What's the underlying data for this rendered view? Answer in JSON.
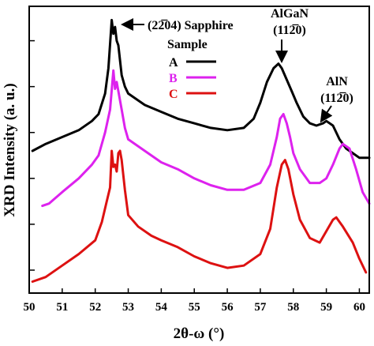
{
  "chart_data": {
    "type": "line",
    "title": "",
    "xlabel": "2θ-ω (°)",
    "ylabel": "XRD Intensity (a. u.)",
    "xlim": [
      50,
      60.3
    ],
    "ylim": [
      0,
      12.5
    ],
    "x_ticks": [
      "50",
      "51",
      "52",
      "53",
      "54",
      "55",
      "56",
      "57",
      "58",
      "59",
      "60"
    ],
    "y_ticks_shown_as_marks_only": true,
    "grid": false,
    "legend": {
      "title": "Sample",
      "position": "top-center",
      "entries": [
        {
          "label": "A",
          "color": "#000000"
        },
        {
          "label": "B",
          "color": "#dd22ee"
        },
        {
          "label": "C",
          "color": "#dd1111"
        }
      ]
    },
    "annotations": [
      {
        "text": "(22̅04) Sapphire",
        "points_to_x": 52.7
      },
      {
        "text_lines": [
          "AlGaN",
          "(112̅0)"
        ],
        "points_to_x": 57.6
      },
      {
        "text_lines": [
          "AlN",
          "(112̅0)"
        ],
        "points_to_x": 59.0
      }
    ],
    "series": [
      {
        "name": "A",
        "color": "#000000",
        "x": [
          50.1,
          50.5,
          51.0,
          51.5,
          51.9,
          52.1,
          52.3,
          52.4,
          52.5,
          52.55,
          52.6,
          52.65,
          52.7,
          52.8,
          52.9,
          53.0,
          53.5,
          54.0,
          54.5,
          55.0,
          55.5,
          56.0,
          56.5,
          56.8,
          57.0,
          57.2,
          57.4,
          57.55,
          57.65,
          57.8,
          57.95,
          58.1,
          58.3,
          58.5,
          58.7,
          58.9,
          59.0,
          59.2,
          59.4,
          59.6,
          59.8,
          60.0,
          60.3
        ],
        "y": [
          6.2,
          6.5,
          6.8,
          7.1,
          7.5,
          7.8,
          8.7,
          9.8,
          11.9,
          11.3,
          11.6,
          11.0,
          10.8,
          9.5,
          9.0,
          8.7,
          8.2,
          7.9,
          7.6,
          7.4,
          7.2,
          7.1,
          7.2,
          7.6,
          8.3,
          9.2,
          9.8,
          10.0,
          9.8,
          9.3,
          8.8,
          8.3,
          7.7,
          7.4,
          7.3,
          7.4,
          7.5,
          7.3,
          6.7,
          6.3,
          6.1,
          5.9,
          5.9
        ]
      },
      {
        "name": "B",
        "color": "#dd22ee",
        "x": [
          50.4,
          50.6,
          51.0,
          51.5,
          51.9,
          52.1,
          52.3,
          52.45,
          52.55,
          52.6,
          52.65,
          52.7,
          52.8,
          52.9,
          53.0,
          53.5,
          54.0,
          54.5,
          55.0,
          55.5,
          56.0,
          56.5,
          57.0,
          57.3,
          57.5,
          57.6,
          57.7,
          57.8,
          57.9,
          58.0,
          58.2,
          58.5,
          58.8,
          59.0,
          59.2,
          59.4,
          59.5,
          59.7,
          59.9,
          60.1,
          60.3
        ],
        "y": [
          3.8,
          3.9,
          4.4,
          5.0,
          5.6,
          6.0,
          7.0,
          8.0,
          9.7,
          8.9,
          9.2,
          8.8,
          8.0,
          7.2,
          6.7,
          6.2,
          5.7,
          5.4,
          5.0,
          4.7,
          4.5,
          4.5,
          4.8,
          5.6,
          6.8,
          7.6,
          7.8,
          7.4,
          6.8,
          6.1,
          5.4,
          4.8,
          4.8,
          5.0,
          5.6,
          6.3,
          6.5,
          6.3,
          5.4,
          4.4,
          3.9
        ]
      },
      {
        "name": "C",
        "color": "#dd1111",
        "x": [
          50.1,
          50.5,
          51.0,
          51.5,
          52.0,
          52.2,
          52.35,
          52.45,
          52.5,
          52.55,
          52.6,
          52.65,
          52.7,
          52.75,
          52.8,
          52.9,
          53.0,
          53.3,
          53.7,
          54.0,
          54.5,
          55.0,
          55.5,
          56.0,
          56.5,
          57.0,
          57.3,
          57.5,
          57.65,
          57.75,
          57.85,
          58.0,
          58.2,
          58.5,
          58.8,
          59.0,
          59.2,
          59.3,
          59.5,
          59.8,
          60.0,
          60.2
        ],
        "y": [
          0.5,
          0.7,
          1.2,
          1.7,
          2.3,
          3.1,
          4.0,
          4.6,
          6.2,
          5.5,
          5.6,
          5.3,
          6.1,
          6.2,
          5.8,
          4.5,
          3.4,
          2.9,
          2.5,
          2.3,
          2.0,
          1.6,
          1.3,
          1.1,
          1.2,
          1.7,
          2.8,
          4.6,
          5.6,
          5.8,
          5.4,
          4.3,
          3.2,
          2.4,
          2.2,
          2.7,
          3.2,
          3.3,
          2.9,
          2.2,
          1.5,
          0.9
        ]
      }
    ]
  }
}
